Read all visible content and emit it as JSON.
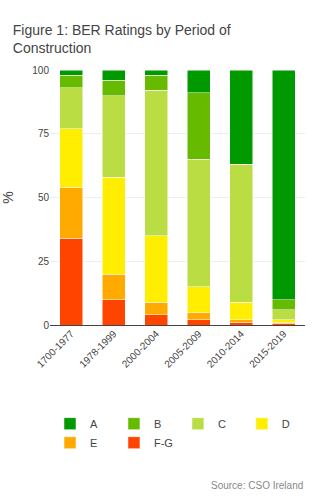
{
  "chart_data": {
    "type": "bar",
    "title": "Figure 1: BER Ratings by Period of\nConstruction",
    "ylabel": "%",
    "categories": [
      "1700-1977",
      "1978-1999",
      "2000-2004",
      "2005-2009",
      "2010-2014",
      "2015-2019"
    ],
    "series": [
      {
        "name": "F-G",
        "color": "#ff4400",
        "values": [
          34,
          10,
          4,
          2,
          1,
          0.5
        ]
      },
      {
        "name": "E",
        "color": "#ffaa00",
        "values": [
          20,
          10,
          5,
          3,
          1,
          0.5
        ]
      },
      {
        "name": "D",
        "color": "#ffee00",
        "values": [
          23,
          38,
          26,
          10,
          7,
          1
        ]
      },
      {
        "name": "C",
        "color": "#bbdd44",
        "values": [
          16,
          32,
          57,
          50,
          54,
          4
        ]
      },
      {
        "name": "B",
        "color": "#66bb00",
        "values": [
          5,
          6,
          6,
          26,
          0,
          4
        ]
      },
      {
        "name": "A",
        "color": "#009900",
        "values": [
          2,
          4,
          2,
          9,
          37,
          90
        ]
      }
    ],
    "stacked": true,
    "ylim": [
      0,
      100
    ],
    "yticks": [
      0,
      25,
      50,
      75,
      100
    ],
    "grid": true,
    "legend": "bottom",
    "annotations": [
      "Source: CSO Ireland"
    ]
  }
}
